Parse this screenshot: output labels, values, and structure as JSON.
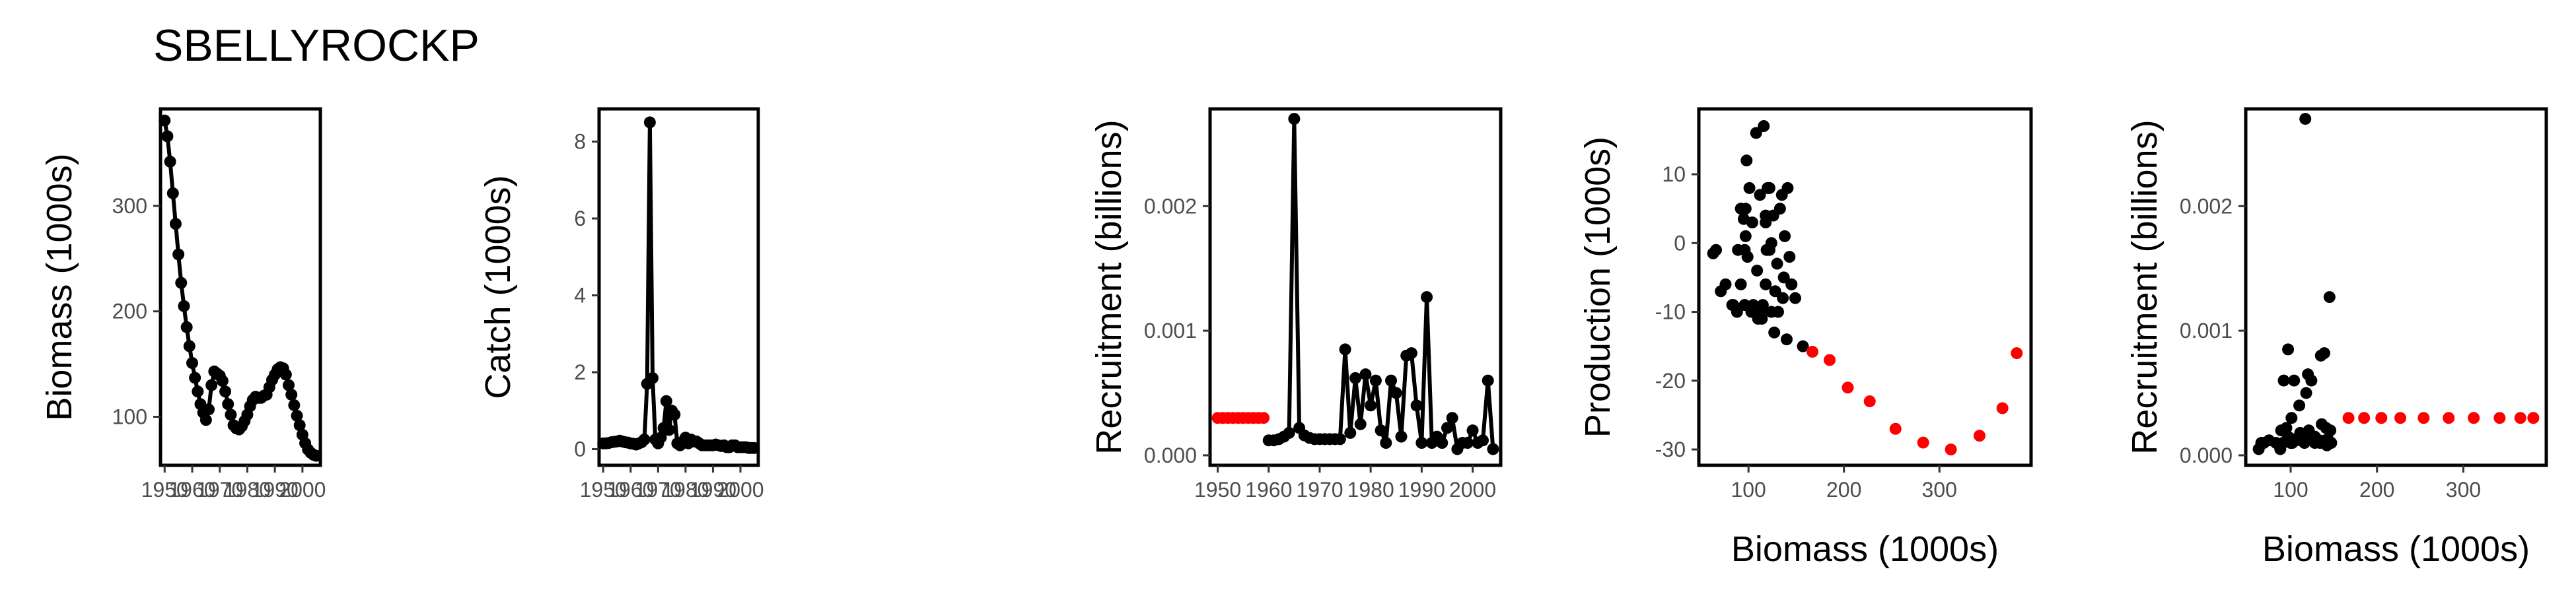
{
  "title": "SBELLYROCKP",
  "colors": {
    "line": "#000000",
    "highlight": "#ff0000",
    "tick_text": "#4d4d4d"
  },
  "chart_data": [
    {
      "type": "line",
      "ylabel": "Biomass (1000s)",
      "xlabel": "",
      "x_ticks": [
        "1950",
        "1960",
        "1970",
        "1980",
        "1990",
        "2000"
      ],
      "y_ticks": [
        "100",
        "200",
        "300"
      ],
      "xlim": [
        1948.5,
        2006.5
      ],
      "ylim": [
        54,
        392
      ],
      "series": [
        {
          "x": [
            1950,
            1951,
            1952,
            1953,
            1954,
            1955,
            1956,
            1957,
            1958,
            1959,
            1960,
            1961,
            1962,
            1963,
            1964,
            1965,
            1966,
            1967,
            1968,
            1969,
            1970,
            1971,
            1972,
            1973,
            1974,
            1975,
            1976,
            1977,
            1978,
            1979,
            1980,
            1981,
            1982,
            1983,
            1984,
            1985,
            1986,
            1987,
            1988,
            1989,
            1990,
            1991,
            1992,
            1993,
            1994,
            1995,
            1996,
            1997,
            1998,
            1999,
            2000,
            2001,
            2002,
            2003,
            2004,
            2005
          ],
          "y": [
            381,
            366,
            342,
            312,
            283,
            254,
            227,
            205,
            185,
            167,
            151,
            137,
            124,
            112,
            104,
            97,
            107,
            130,
            143,
            141,
            139,
            134,
            124,
            112,
            102,
            92,
            89,
            88,
            91,
            96,
            102,
            110,
            116,
            119,
            118,
            118,
            120,
            121,
            128,
            135,
            140,
            145,
            147,
            146,
            140,
            130,
            121,
            111,
            101,
            92,
            83,
            75,
            69,
            66,
            64,
            63
          ]
        }
      ]
    },
    {
      "type": "line",
      "ylabel": "Catch (1000s)",
      "xlabel": "",
      "x_ticks": [
        "1950",
        "1960",
        "1970",
        "1980",
        "1990",
        "2000"
      ],
      "y_ticks": [
        "0",
        "2",
        "4",
        "6",
        "8"
      ],
      "xlim": [
        1948.5,
        2006.5
      ],
      "ylim": [
        -0.42,
        8.85
      ],
      "series": [
        {
          "x": [
            1950,
            1951,
            1952,
            1953,
            1954,
            1955,
            1956,
            1957,
            1958,
            1959,
            1960,
            1961,
            1962,
            1963,
            1964,
            1965,
            1966,
            1967,
            1968,
            1969,
            1970,
            1971,
            1972,
            1973,
            1974,
            1975,
            1976,
            1977,
            1978,
            1979,
            1980,
            1981,
            1982,
            1983,
            1984,
            1985,
            1986,
            1987,
            1988,
            1989,
            1990,
            1991,
            1992,
            1993,
            1994,
            1995,
            1996,
            1997,
            1998,
            1999,
            2000,
            2001,
            2002,
            2003,
            2004,
            2005
          ],
          "y": [
            0.15,
            0.15,
            0.16,
            0.18,
            0.19,
            0.2,
            0.22,
            0.2,
            0.18,
            0.17,
            0.15,
            0.14,
            0.12,
            0.15,
            0.18,
            0.25,
            1.7,
            8.5,
            1.85,
            0.25,
            0.15,
            0.3,
            0.55,
            1.25,
            0.5,
            1.0,
            0.9,
            0.15,
            0.1,
            0.2,
            0.3,
            0.15,
            0.25,
            0.2,
            0.2,
            0.15,
            0.1,
            0.1,
            0.1,
            0.1,
            0.1,
            0.12,
            0.1,
            0.08,
            0.1,
            0.05,
            0.05,
            0.1,
            0.1,
            0.05,
            0.05,
            0.05,
            0.05,
            0.03,
            0.03,
            0.03
          ]
        }
      ]
    },
    {
      "type": "line",
      "ylabel": "Recruitment (billions)",
      "xlabel": "",
      "x_ticks": [
        "1950",
        "1960",
        "1970",
        "1980",
        "1990",
        "2000"
      ],
      "y_ticks": [
        "0.000",
        "0.001",
        "0.002"
      ],
      "xlim": [
        1948.5,
        2005.5
      ],
      "ylim": [
        -8e-05,
        0.00278
      ],
      "series": [
        {
          "name": "",
          "color": "#ff0000",
          "x": [
            1950,
            1951,
            1952,
            1953,
            1954,
            1955,
            1956,
            1957,
            1958,
            1959
          ],
          "y": [
            0.0003,
            0.0003,
            0.0003,
            0.0003,
            0.0003,
            0.0003,
            0.0003,
            0.0003,
            0.0003,
            0.0003
          ]
        },
        {
          "name": "",
          "color": "#000000",
          "x": [
            1960,
            1961,
            1962,
            1963,
            1964,
            1965,
            1966,
            1967,
            1968,
            1969,
            1970,
            1971,
            1972,
            1973,
            1974,
            1975,
            1976,
            1977,
            1978,
            1979,
            1980,
            1981,
            1982,
            1983,
            1984,
            1985,
            1986,
            1987,
            1988,
            1989,
            1990,
            1991,
            1992,
            1993,
            1994,
            1995,
            1996,
            1997,
            1998,
            1999,
            2000,
            2001,
            2002,
            2003,
            2004
          ],
          "y": [
            0.00012,
            0.00012,
            0.00013,
            0.00015,
            0.00018,
            0.0027,
            0.00022,
            0.00016,
            0.00014,
            0.00013,
            0.00013,
            0.00013,
            0.00013,
            0.00013,
            0.00013,
            0.00085,
            0.00018,
            0.00062,
            0.00025,
            0.00065,
            0.0004,
            0.0006,
            0.0002,
            0.0001,
            0.0006,
            0.0005,
            0.00015,
            0.0008,
            0.00082,
            0.0004,
            0.0001,
            0.00127,
            0.0001,
            0.00015,
            0.0001,
            0.00022,
            0.0003,
            5e-05,
            0.0001,
            0.0001,
            0.0002,
            0.0001,
            0.00012,
            0.0006,
            5e-05
          ]
        }
      ]
    },
    {
      "type": "scatter",
      "ylabel": "Production (1000s)",
      "xlabel": "Biomass (1000s)",
      "x_ticks": [
        "100",
        "200",
        "300"
      ],
      "y_ticks": [
        "-30",
        "-20",
        "-10",
        "0",
        "10"
      ],
      "xlim": [
        48,
        396
      ],
      "ylim": [
        -32.3,
        19.5
      ],
      "series": [
        {
          "color": "#000000",
          "points": [
            [
              63,
              -1.5
            ],
            [
              66,
              -1
            ],
            [
              71,
              -7
            ],
            [
              84,
              -9
            ],
            [
              92,
              5
            ],
            [
              101,
              8
            ],
            [
              89,
              -1
            ],
            [
              96,
              -9
            ],
            [
              96,
              -1
            ],
            [
              95,
              3.5
            ],
            [
              88,
              -10
            ],
            [
              83,
              -9
            ],
            [
              76,
              -6
            ],
            [
              103,
              -10
            ],
            [
              105,
              -9
            ],
            [
              110,
              -11
            ],
            [
              109,
              -4
            ],
            [
              108,
              16
            ],
            [
              116,
              17
            ],
            [
              118,
              3
            ],
            [
              122,
              8
            ],
            [
              115,
              -9
            ],
            [
              122,
              -1
            ],
            [
              126,
              4
            ],
            [
              130,
              -3
            ],
            [
              133,
              5
            ],
            [
              135,
              7
            ],
            [
              138,
              1
            ],
            [
              141,
              8
            ],
            [
              145,
              -6
            ],
            [
              149,
              -8
            ],
            [
              131,
              -10
            ],
            [
              127,
              -13
            ],
            [
              140,
              -14
            ],
            [
              157,
              -15
            ],
            [
              136,
              -8
            ],
            [
              124,
              0
            ],
            [
              112,
              -10
            ],
            [
              114,
              -11
            ],
            [
              118,
              4
            ],
            [
              99,
              -2
            ],
            [
              97,
              1
            ],
            [
              98,
              12
            ],
            [
              104,
              3
            ],
            [
              92,
              -6
            ],
            [
              97,
              5
            ],
            [
              112,
              7
            ],
            [
              118,
              -6
            ],
            [
              120,
              8
            ],
            [
              124,
              -10
            ],
            [
              128,
              -7
            ],
            [
              137,
              -5
            ],
            [
              143,
              -2
            ],
            [
              145,
              -6
            ],
            [
              119,
              -1
            ]
          ]
        },
        {
          "color": "#ff0000",
          "points": [
            [
              167,
              -15.8
            ],
            [
              185,
              -17
            ],
            [
              204,
              -21
            ],
            [
              227,
              -23
            ],
            [
              254,
              -27
            ],
            [
              283,
              -29
            ],
            [
              312,
              -30
            ],
            [
              342,
              -28
            ],
            [
              366,
              -24
            ],
            [
              381,
              -16
            ]
          ]
        }
      ]
    },
    {
      "type": "scatter",
      "ylabel": "Recruitment (billions)",
      "xlabel": "Biomass (1000s)",
      "x_ticks": [
        "100",
        "200",
        "300"
      ],
      "y_ticks": [
        "0.000",
        "0.001",
        "0.002"
      ],
      "xlim": [
        48,
        396
      ],
      "ylim": [
        -8e-05,
        0.00278
      ],
      "series": [
        {
          "color": "#000000",
          "points": [
            [
              63,
              5e-05
            ],
            [
              66,
              0.0001
            ],
            [
              69,
              0.0001
            ],
            [
              75,
              0.00012
            ],
            [
              83,
              0.0001
            ],
            [
              89,
              0.0002
            ],
            [
              91,
              0.0001
            ],
            [
              92,
              0.0006
            ],
            [
              95,
              0.00022
            ],
            [
              97,
              0.00085
            ],
            [
              101,
              0.0003
            ],
            [
              102,
              0.00013
            ],
            [
              104,
              0.0006
            ],
            [
              107,
              0.00012
            ],
            [
              110,
              0.0004
            ],
            [
              112,
              0.00013
            ],
            [
              113,
              0.00015
            ],
            [
              117,
              0.0027
            ],
            [
              118,
              0.0005
            ],
            [
              119,
              0.00013
            ],
            [
              121,
              0.0002
            ],
            [
              124,
              0.00013
            ],
            [
              128,
              0.00015
            ],
            [
              130,
              0.00013
            ],
            [
              133,
              0.00012
            ],
            [
              135,
              0.0008
            ],
            [
              136,
              0.00025
            ],
            [
              139,
              0.00082
            ],
            [
              140,
              0.00012
            ],
            [
              141,
              0.00022
            ],
            [
              143,
              0.00013
            ],
            [
              145,
              0.00127
            ],
            [
              146,
              0.0002
            ],
            [
              147,
              0.0001
            ],
            [
              134,
              0.0001
            ],
            [
              120,
              0.00065
            ],
            [
              116,
              0.0001
            ],
            [
              102,
              0.0001
            ],
            [
              124,
              0.0006
            ],
            [
              88,
              5e-05
            ],
            [
              111,
              0.00018
            ],
            [
              128,
              0.0001
            ],
            [
              142,
              8e-05
            ],
            [
              100,
              0.0001
            ],
            [
              97,
              0.00015
            ]
          ]
        },
        {
          "color": "#ff0000",
          "points": [
            [
              167,
              0.0003
            ],
            [
              185,
              0.0003
            ],
            [
              205,
              0.0003
            ],
            [
              227,
              0.0003
            ],
            [
              254,
              0.0003
            ],
            [
              283,
              0.0003
            ],
            [
              312,
              0.0003
            ],
            [
              342,
              0.0003
            ],
            [
              366,
              0.0003
            ],
            [
              381,
              0.0003
            ]
          ]
        }
      ]
    }
  ]
}
